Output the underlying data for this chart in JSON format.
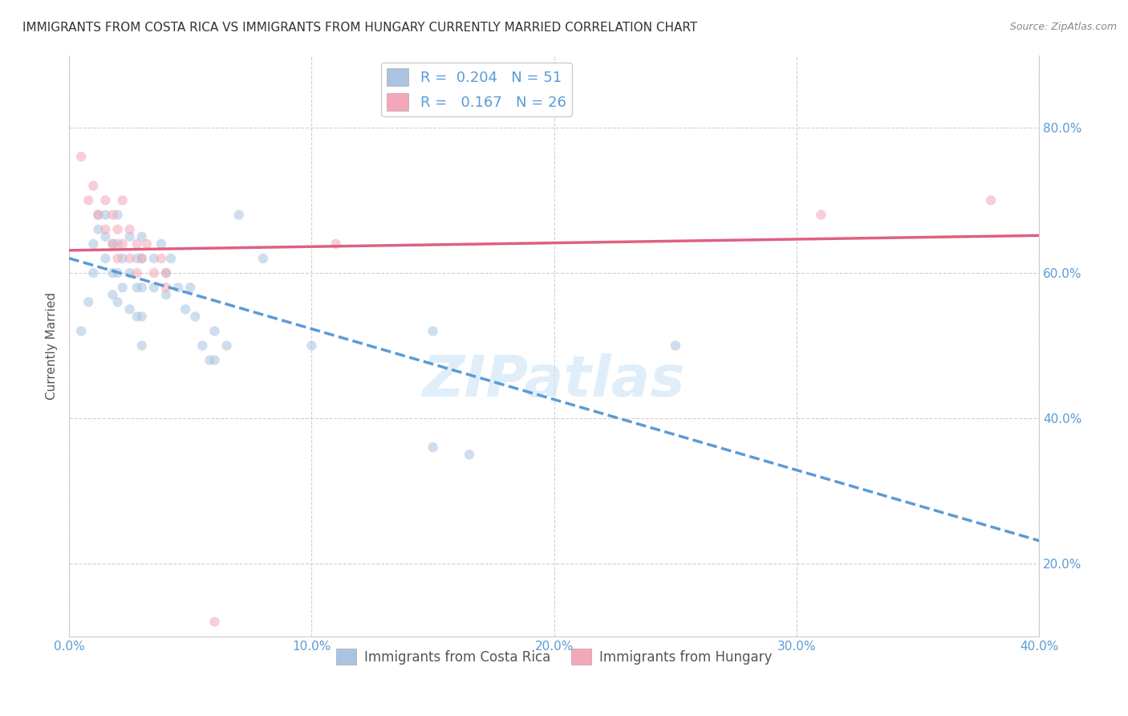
{
  "title": "IMMIGRANTS FROM COSTA RICA VS IMMIGRANTS FROM HUNGARY CURRENTLY MARRIED CORRELATION CHART",
  "source_text": "Source: ZipAtlas.com",
  "ylabel": "Currently Married",
  "xlim": [
    0.0,
    0.4
  ],
  "ylim": [
    0.1,
    0.9
  ],
  "x_tick_values": [
    0.0,
    0.1,
    0.2,
    0.3,
    0.4
  ],
  "y_tick_values": [
    0.2,
    0.4,
    0.6,
    0.8
  ],
  "grid_color": "#d0d0d0",
  "background_color": "#ffffff",
  "watermark_text": "ZIPatlas",
  "legend_R1": "0.204",
  "legend_N1": "51",
  "legend_R2": "0.167",
  "legend_N2": "26",
  "color_blue": "#a8c4e0",
  "color_pink": "#f4a7b9",
  "line_color_blue": "#5b9bd5",
  "line_color_pink": "#e06080",
  "scatter_blue": [
    [
      0.005,
      0.52
    ],
    [
      0.008,
      0.56
    ],
    [
      0.01,
      0.64
    ],
    [
      0.01,
      0.6
    ],
    [
      0.012,
      0.68
    ],
    [
      0.012,
      0.66
    ],
    [
      0.015,
      0.68
    ],
    [
      0.015,
      0.65
    ],
    [
      0.015,
      0.62
    ],
    [
      0.018,
      0.64
    ],
    [
      0.018,
      0.6
    ],
    [
      0.018,
      0.57
    ],
    [
      0.02,
      0.68
    ],
    [
      0.02,
      0.64
    ],
    [
      0.02,
      0.6
    ],
    [
      0.02,
      0.56
    ],
    [
      0.022,
      0.62
    ],
    [
      0.022,
      0.58
    ],
    [
      0.025,
      0.65
    ],
    [
      0.025,
      0.6
    ],
    [
      0.025,
      0.55
    ],
    [
      0.028,
      0.62
    ],
    [
      0.028,
      0.58
    ],
    [
      0.028,
      0.54
    ],
    [
      0.03,
      0.65
    ],
    [
      0.03,
      0.62
    ],
    [
      0.03,
      0.58
    ],
    [
      0.03,
      0.54
    ],
    [
      0.03,
      0.5
    ],
    [
      0.035,
      0.62
    ],
    [
      0.035,
      0.58
    ],
    [
      0.038,
      0.64
    ],
    [
      0.04,
      0.6
    ],
    [
      0.04,
      0.57
    ],
    [
      0.042,
      0.62
    ],
    [
      0.045,
      0.58
    ],
    [
      0.048,
      0.55
    ],
    [
      0.05,
      0.58
    ],
    [
      0.052,
      0.54
    ],
    [
      0.055,
      0.5
    ],
    [
      0.058,
      0.48
    ],
    [
      0.06,
      0.52
    ],
    [
      0.06,
      0.48
    ],
    [
      0.065,
      0.5
    ],
    [
      0.07,
      0.68
    ],
    [
      0.08,
      0.62
    ],
    [
      0.1,
      0.5
    ],
    [
      0.15,
      0.52
    ],
    [
      0.15,
      0.36
    ],
    [
      0.165,
      0.35
    ],
    [
      0.25,
      0.5
    ]
  ],
  "scatter_pink": [
    [
      0.005,
      0.76
    ],
    [
      0.008,
      0.7
    ],
    [
      0.01,
      0.72
    ],
    [
      0.012,
      0.68
    ],
    [
      0.015,
      0.7
    ],
    [
      0.015,
      0.66
    ],
    [
      0.018,
      0.68
    ],
    [
      0.018,
      0.64
    ],
    [
      0.02,
      0.66
    ],
    [
      0.02,
      0.62
    ],
    [
      0.022,
      0.7
    ],
    [
      0.022,
      0.64
    ],
    [
      0.025,
      0.66
    ],
    [
      0.025,
      0.62
    ],
    [
      0.028,
      0.64
    ],
    [
      0.028,
      0.6
    ],
    [
      0.03,
      0.62
    ],
    [
      0.032,
      0.64
    ],
    [
      0.035,
      0.6
    ],
    [
      0.038,
      0.62
    ],
    [
      0.04,
      0.6
    ],
    [
      0.04,
      0.58
    ],
    [
      0.06,
      0.12
    ],
    [
      0.11,
      0.64
    ],
    [
      0.31,
      0.68
    ],
    [
      0.38,
      0.7
    ]
  ],
  "title_fontsize": 11,
  "axis_fontsize": 11,
  "tick_fontsize": 11,
  "legend_fontsize": 13,
  "watermark_fontsize": 52,
  "marker_size": 80,
  "marker_alpha": 0.55
}
